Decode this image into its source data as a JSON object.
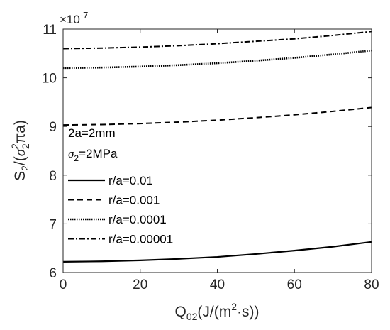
{
  "chart_data": {
    "type": "line",
    "xlabel_parts": {
      "q": "Q",
      "sub": "02",
      "mid": "(J/(m",
      "sup": "2",
      "end": "·s))"
    },
    "ylabel_parts": {
      "s": "S",
      "sub1": "2",
      "mid": "/(",
      "sigma": "σ",
      "sup": "2",
      "sub2": "2",
      "end": "πa)"
    },
    "exponent_label": {
      "prefix": "×10",
      "power": "-7"
    },
    "xlim": [
      0,
      80
    ],
    "ylim": [
      6,
      11
    ],
    "xticks": [
      "0",
      "20",
      "40",
      "60",
      "80"
    ],
    "yticks": [
      "6",
      "7",
      "8",
      "9",
      "10",
      "11"
    ],
    "grid": false,
    "legend_position": "lower-left",
    "legend_header": {
      "line1": "2a=2mm",
      "line2_sigma": "σ",
      "line2_sub": "2",
      "line2_rest": "=2MPa"
    },
    "series": [
      {
        "name": "r/a=0.01",
        "style": "solid",
        "x": [
          0,
          10,
          20,
          30,
          40,
          50,
          60,
          70,
          80
        ],
        "y": [
          6.22,
          6.23,
          6.25,
          6.28,
          6.32,
          6.38,
          6.45,
          6.53,
          6.63
        ]
      },
      {
        "name": "r/a=0.001",
        "style": "dashed",
        "x": [
          0,
          10,
          20,
          30,
          40,
          50,
          60,
          70,
          80
        ],
        "y": [
          9.03,
          9.04,
          9.06,
          9.09,
          9.13,
          9.18,
          9.24,
          9.31,
          9.39
        ]
      },
      {
        "name": "r/a=0.0001",
        "style": "dotted",
        "x": [
          0,
          10,
          20,
          30,
          40,
          50,
          60,
          70,
          80
        ],
        "y": [
          10.2,
          10.21,
          10.23,
          10.26,
          10.3,
          10.35,
          10.41,
          10.48,
          10.56
        ]
      },
      {
        "name": "r/a=0.00001",
        "style": "dashdot",
        "x": [
          0,
          10,
          20,
          30,
          40,
          50,
          60,
          70,
          80
        ],
        "y": [
          10.6,
          10.61,
          10.63,
          10.66,
          10.7,
          10.75,
          10.8,
          10.87,
          10.95
        ]
      }
    ]
  },
  "colors": {
    "axis": "#262626",
    "line": "#000000",
    "background": "#ffffff"
  }
}
